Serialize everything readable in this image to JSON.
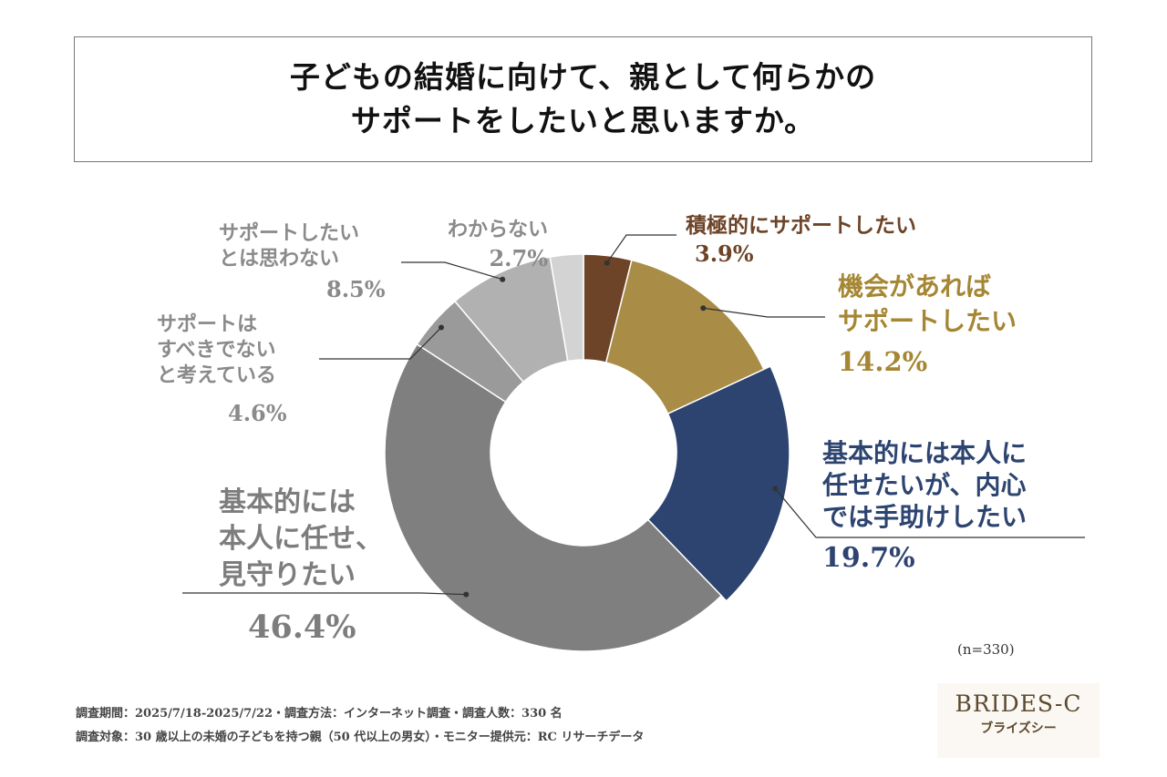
{
  "title": {
    "line1": "子どもの結婚に向けて、親として何らかの",
    "line2": "サポートをしたいと思いますか。"
  },
  "chart_data": {
    "type": "pie",
    "variant": "donut",
    "title": "子どもの結婚に向けて、親として何らかのサポートをしたいと思いますか。",
    "n_label": "(n=330)",
    "slices": [
      {
        "label": "積極的にサポートしたい",
        "lines": [
          "積極的にサポートしたい"
        ],
        "value": 3.9,
        "value_label": "3.9%",
        "color": "#6e4428",
        "label_color": "#6e4428"
      },
      {
        "label": "機会があればサポートしたい",
        "lines": [
          "機会があれば",
          "サポートしたい"
        ],
        "value": 14.2,
        "value_label": "14.2%",
        "color": "#a98c45",
        "label_color": "#a58633"
      },
      {
        "label": "基本的には本人に任せたいが、内心では手助けしたい",
        "lines": [
          "基本的には本人に",
          "任せたいが、内心",
          "では手助けしたい"
        ],
        "value": 19.7,
        "value_label": "19.7%",
        "color": "#2d4470",
        "label_color": "#2d4470"
      },
      {
        "label": "基本的には本人に任せ、見守りたい",
        "lines": [
          "基本的には",
          "本人に任せ、",
          "見守りたい"
        ],
        "value": 46.4,
        "value_label": "46.4%",
        "color": "#7f7f7f",
        "label_color": "#7d7d7d"
      },
      {
        "label": "サポートはすべきでないと考えている",
        "lines": [
          "サポートは",
          "すべきでない",
          "と考えている"
        ],
        "value": 4.6,
        "value_label": "4.6%",
        "color": "#9a9a9a",
        "label_color": "#8a8a8a"
      },
      {
        "label": "サポートしたいとは思わない",
        "lines": [
          "サポートしたい",
          "とは思わない"
        ],
        "value": 8.5,
        "value_label": "8.5%",
        "color": "#b1b1b1",
        "label_color": "#8a8a8a"
      },
      {
        "label": "わからない",
        "lines": [
          "わからない"
        ],
        "value": 2.7,
        "value_label": "2.7%",
        "color": "#d3d3d3",
        "label_color": "#8a8a8a"
      }
    ]
  },
  "footer": {
    "line1": "調査期間：2025/7/18-2025/7/22・調査方法：インターネット調査・調査人数：330 名",
    "line2": "調査対象：30 歳以上の未婚の子どもを持つ親（50 代以上の男女）・モニター提供元：RC リサーチデータ"
  },
  "logo": {
    "main": "BRIDES-C",
    "sub": "ブライズシー"
  }
}
